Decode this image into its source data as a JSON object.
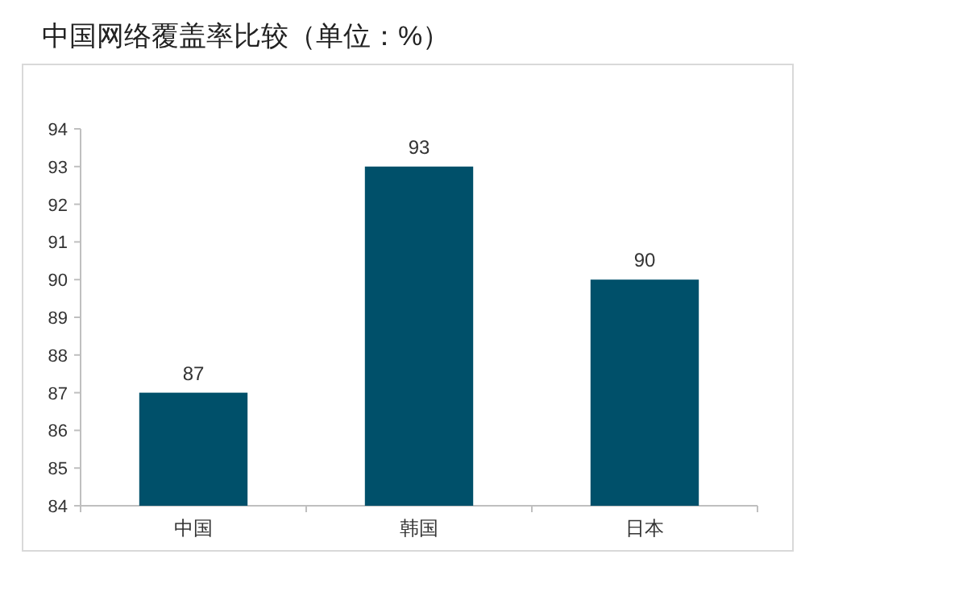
{
  "chart_data": {
    "type": "bar",
    "title": "中国网络覆盖率比较（单位：%）",
    "categories": [
      "中国",
      "韩国",
      "日本"
    ],
    "values": [
      87,
      93,
      90
    ],
    "color": "#00506a",
    "ylim": [
      84,
      94
    ],
    "yticks": [
      84,
      85,
      86,
      87,
      88,
      89,
      90,
      91,
      92,
      93,
      94
    ],
    "grid": false,
    "data_labels": true
  }
}
